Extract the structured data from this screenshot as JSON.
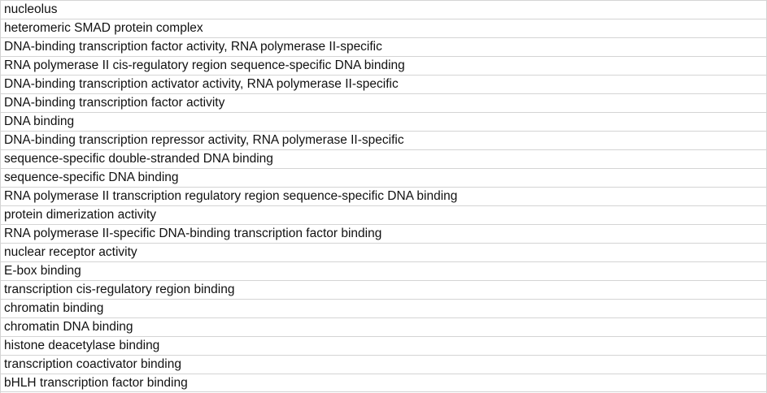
{
  "rows": [
    "nucleolus",
    "heteromeric SMAD protein complex",
    "DNA-binding transcription factor activity, RNA polymerase II-specific",
    "RNA polymerase II cis-regulatory region sequence-specific DNA binding",
    "DNA-binding transcription activator activity, RNA polymerase II-specific",
    "DNA-binding transcription factor activity",
    "DNA binding",
    "DNA-binding transcription repressor activity, RNA polymerase II-specific",
    "sequence-specific double-stranded DNA binding",
    "sequence-specific DNA binding",
    "RNA polymerase II transcription regulatory region sequence-specific DNA binding",
    "protein dimerization activity",
    "RNA polymerase II-specific DNA-binding transcription factor binding",
    "nuclear receptor activity",
    "E-box binding",
    "transcription cis-regulatory region binding",
    "chromatin binding",
    "chromatin DNA binding",
    "histone deacetylase binding",
    "transcription coactivator binding",
    "bHLH transcription factor binding"
  ]
}
